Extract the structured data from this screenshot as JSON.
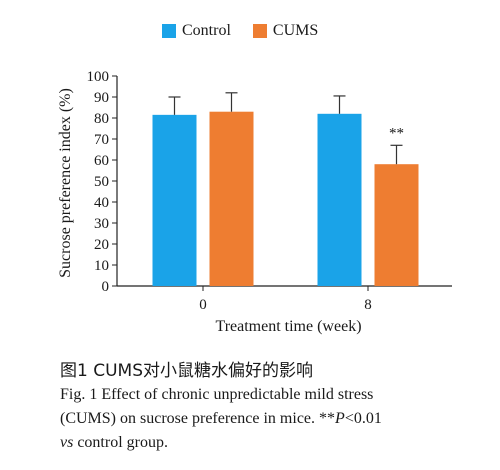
{
  "chart_data": {
    "type": "bar",
    "categories": [
      "0",
      "8"
    ],
    "series": [
      {
        "name": "Control",
        "values": [
          81.5,
          82
        ],
        "errors": [
          8.5,
          8.5
        ],
        "color": "#1aa3e8"
      },
      {
        "name": "CUMS",
        "values": [
          83,
          58
        ],
        "errors": [
          9,
          9
        ],
        "color": "#ee7d31"
      }
    ],
    "annotations": [
      {
        "category": "8",
        "series": "CUMS",
        "text": "**"
      }
    ],
    "xlabel": "Treatment time (week)",
    "ylabel": "Sucrose preference index (%)",
    "ylim": [
      0,
      100
    ],
    "yticks": [
      "0",
      "10",
      "20",
      "30",
      "40",
      "50",
      "60",
      "70",
      "80",
      "90",
      "100"
    ],
    "grid": false,
    "legend_position": "top"
  },
  "caption": {
    "cn": "图1 CUMS对小鼠糖水偏好的影响",
    "en_line1": "Fig. 1  Effect of chronic unpredictable mild stress",
    "en_line2": "(CUMS) on sucrose preference in mice. **",
    "en_p": "P",
    "en_line2_end": "<0.01",
    "en_vs": "vs",
    "en_line3_end": " control group."
  }
}
